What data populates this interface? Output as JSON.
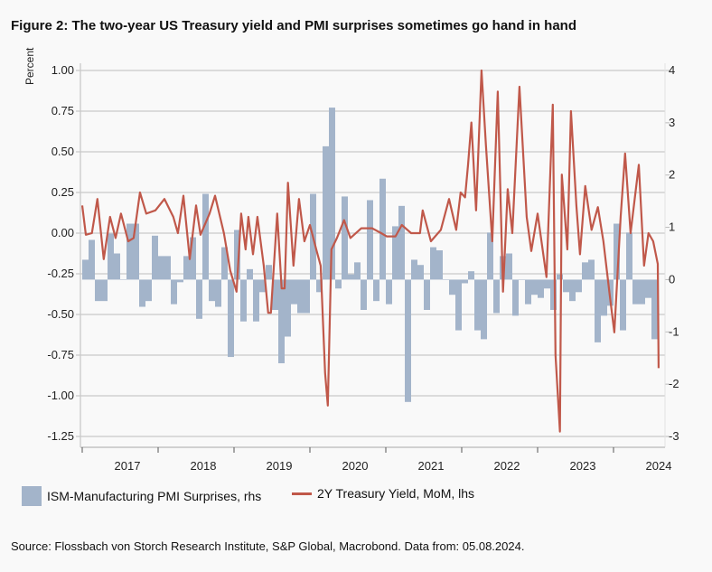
{
  "title": "Figure 2: The two-year US Treasury yield and PMI surprises sometimes go hand in hand",
  "source": "Source: Flossbach von Storch Research Institute, S&P Global, Macrobond. Data from: 05.08.2024.",
  "chart_data": {
    "type": "bar+line",
    "ylabel": "Percent",
    "grid": true,
    "legend_placement": "bottom",
    "left_axis": {
      "range": [
        -1.25,
        1.0
      ],
      "ticks": [
        "1.00",
        "0.75",
        "0.50",
        "0.25",
        "0.00",
        "-0.25",
        "-0.50",
        "-0.75",
        "-1.00",
        "-1.25"
      ]
    },
    "right_axis": {
      "range": [
        -3,
        4
      ],
      "ticks": [
        "4",
        "3",
        "2",
        "1",
        "0",
        "-1",
        "-2",
        "-3"
      ]
    },
    "x_tick_labels": [
      "2017",
      "2018",
      "2019",
      "2020",
      "2021",
      "2022",
      "2023",
      "2024"
    ],
    "colors": {
      "bars": "#a3b4ca",
      "line": "#c0584a"
    },
    "bar_series": {
      "name": "ISM-Manufacturing PMI Surprises, rhs",
      "axis": "right",
      "frequency": "monthly",
      "values_by_year": {
        "2017": [
          0.38,
          0.76,
          -0.41,
          -0.41,
          0.88,
          0.5,
          0,
          1.07,
          1.07,
          -0.52,
          -0.41,
          0.84
        ],
        "2018": [
          0.45,
          0.45,
          -0.47,
          -0.05,
          0.45,
          0.81,
          -0.75,
          1.64,
          -0.41,
          -0.52,
          0.62,
          -1.48
        ],
        "2019": [
          0.95,
          -0.8,
          0.2,
          -0.8,
          -0.24,
          0.28,
          -0.58,
          -1.6,
          -1.09,
          -0.47,
          -0.64,
          -0.64
        ],
        "2020": [
          1.64,
          -0.24,
          2.55,
          3.29,
          -0.17,
          1.59,
          0.1,
          0.33,
          -0.58,
          1.52,
          -0.41,
          1.93
        ],
        "2021": [
          -0.47,
          1.02,
          1.41,
          -2.34,
          0.38,
          0.28,
          -0.58,
          0.62,
          0.56,
          0,
          -0.29,
          -0.97
        ],
        "2022": [
          -0.07,
          0.16,
          -0.97,
          -1.14,
          0.9,
          -0.64,
          0.45,
          0.5,
          -0.69,
          0,
          -0.47,
          -0.29
        ],
        "2023": [
          -0.35,
          -0.17,
          -0.58,
          0.1,
          -0.24,
          -0.41,
          -0.24,
          0.33,
          0.38,
          -1.2,
          -0.69,
          -0.5
        ],
        "2024": [
          1.07,
          -0.97,
          0.9,
          -0.47,
          -0.47,
          -0.35,
          -1.14
        ]
      }
    },
    "line_series": {
      "name": "2Y Treasury Yield, MoM, lhs",
      "axis": "left",
      "points": [
        [
          "2017-01-01",
          0.17
        ],
        [
          "2017-01-18",
          -0.01
        ],
        [
          "2017-02-17",
          0.0
        ],
        [
          "2017-03-13",
          0.21
        ],
        [
          "2017-04-13",
          -0.16
        ],
        [
          "2017-05-13",
          0.1
        ],
        [
          "2017-06-09",
          -0.03
        ],
        [
          "2017-07-05",
          0.12
        ],
        [
          "2017-08-09",
          -0.05
        ],
        [
          "2017-09-05",
          -0.03
        ],
        [
          "2017-10-05",
          0.25
        ],
        [
          "2017-11-05",
          0.12
        ],
        [
          "2017-12-18",
          0.14
        ],
        [
          "2018-02-01",
          0.21
        ],
        [
          "2018-03-13",
          0.1
        ],
        [
          "2018-04-05",
          0.0
        ],
        [
          "2018-05-01",
          0.23
        ],
        [
          "2018-06-01",
          -0.16
        ],
        [
          "2018-07-01",
          0.17
        ],
        [
          "2018-07-22",
          -0.01
        ],
        [
          "2018-09-05",
          0.12
        ],
        [
          "2018-10-01",
          0.23
        ],
        [
          "2018-11-13",
          0.0
        ],
        [
          "2018-12-13",
          -0.23
        ],
        [
          "2019-01-13",
          -0.36
        ],
        [
          "2019-02-05",
          0.12
        ],
        [
          "2019-02-26",
          -0.1
        ],
        [
          "2019-03-09",
          0.1
        ],
        [
          "2019-04-01",
          -0.13
        ],
        [
          "2019-04-22",
          0.1
        ],
        [
          "2019-05-22",
          -0.2
        ],
        [
          "2019-06-13",
          -0.49
        ],
        [
          "2019-06-26",
          -0.49
        ],
        [
          "2019-07-26",
          0.12
        ],
        [
          "2019-08-17",
          -0.34
        ],
        [
          "2019-09-01",
          -0.34
        ],
        [
          "2019-09-17",
          0.31
        ],
        [
          "2019-10-13",
          -0.2
        ],
        [
          "2019-11-09",
          0.21
        ],
        [
          "2019-12-05",
          -0.05
        ],
        [
          "2020-01-01",
          0.05
        ],
        [
          "2020-02-01",
          -0.1
        ],
        [
          "2020-02-22",
          -0.2
        ],
        [
          "2020-03-13",
          -0.86
        ],
        [
          "2020-03-26",
          -1.06
        ],
        [
          "2020-04-13",
          -0.1
        ],
        [
          "2020-05-09",
          -0.03
        ],
        [
          "2020-06-13",
          0.08
        ],
        [
          "2020-07-13",
          -0.03
        ],
        [
          "2020-09-05",
          0.03
        ],
        [
          "2020-10-26",
          0.03
        ],
        [
          "2020-12-09",
          0.0
        ],
        [
          "2021-01-05",
          -0.02
        ],
        [
          "2021-02-17",
          -0.02
        ],
        [
          "2021-03-17",
          0.05
        ],
        [
          "2021-05-01",
          0.0
        ],
        [
          "2021-06-13",
          0.0
        ],
        [
          "2021-06-26",
          0.14
        ],
        [
          "2021-08-05",
          -0.05
        ],
        [
          "2021-09-22",
          0.02
        ],
        [
          "2021-11-01",
          0.21
        ],
        [
          "2021-12-05",
          0.02
        ],
        [
          "2021-12-26",
          0.25
        ],
        [
          "2022-01-17",
          0.22
        ],
        [
          "2022-02-01",
          0.42
        ],
        [
          "2022-02-17",
          0.68
        ],
        [
          "2022-03-09",
          0.14
        ],
        [
          "2022-04-05",
          1.0
        ],
        [
          "2022-04-26",
          0.54
        ],
        [
          "2022-05-26",
          -0.05
        ],
        [
          "2022-06-22",
          0.87
        ],
        [
          "2022-07-17",
          -0.36
        ],
        [
          "2022-08-09",
          0.27
        ],
        [
          "2022-09-01",
          0.0
        ],
        [
          "2022-10-05",
          0.9
        ],
        [
          "2022-11-09",
          0.1
        ],
        [
          "2022-12-01",
          -0.11
        ],
        [
          "2023-01-01",
          0.12
        ],
        [
          "2023-02-13",
          -0.27
        ],
        [
          "2023-03-13",
          0.79
        ],
        [
          "2023-03-26",
          -0.75
        ],
        [
          "2023-04-17",
          -1.22
        ],
        [
          "2023-04-26",
          0.36
        ],
        [
          "2023-05-22",
          -0.1
        ],
        [
          "2023-06-09",
          0.75
        ],
        [
          "2023-07-05",
          0.17
        ],
        [
          "2023-07-22",
          -0.13
        ],
        [
          "2023-08-17",
          0.29
        ],
        [
          "2023-09-17",
          0.02
        ],
        [
          "2023-10-17",
          0.16
        ],
        [
          "2023-11-13",
          -0.05
        ],
        [
          "2023-12-13",
          -0.38
        ],
        [
          "2024-01-05",
          -0.61
        ],
        [
          "2024-02-05",
          0.1
        ],
        [
          "2024-02-26",
          0.49
        ],
        [
          "2024-03-22",
          0.0
        ],
        [
          "2024-05-01",
          0.42
        ],
        [
          "2024-05-26",
          -0.2
        ],
        [
          "2024-06-17",
          0.0
        ],
        [
          "2024-07-09",
          -0.05
        ],
        [
          "2024-08-01",
          -0.19
        ],
        [
          "2024-08-05",
          -0.83
        ]
      ]
    }
  }
}
